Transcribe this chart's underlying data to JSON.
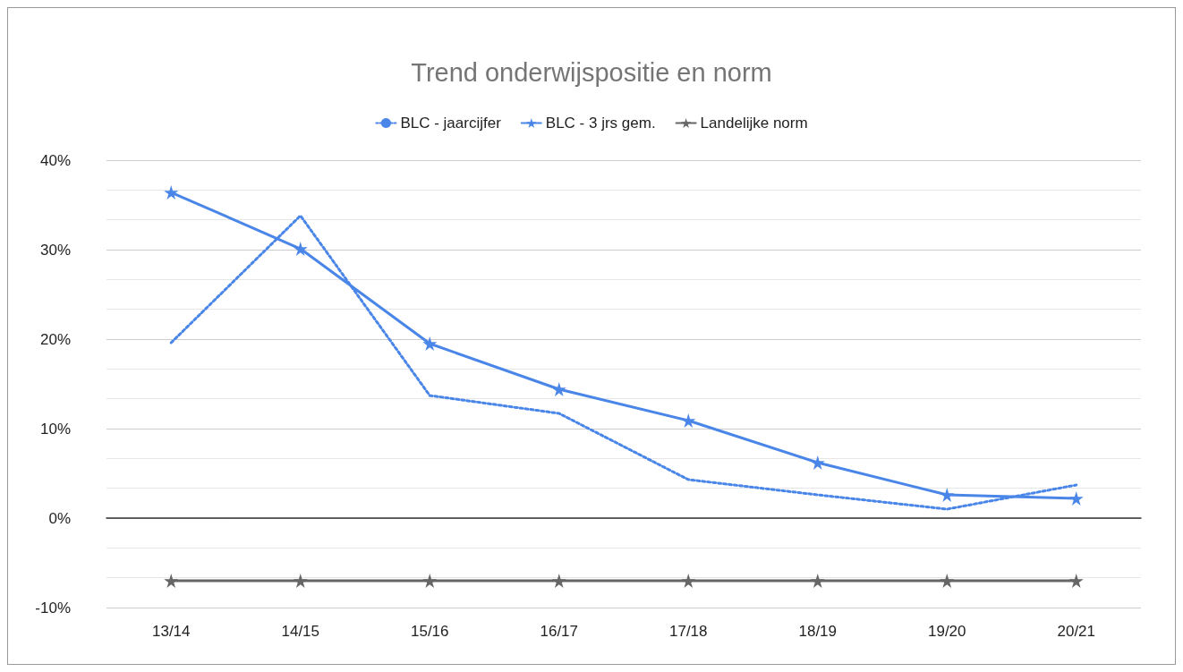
{
  "chart_data": {
    "type": "line",
    "title": "Trend onderwijspositie en norm",
    "categories": [
      "13/14",
      "14/15",
      "15/16",
      "16/17",
      "17/18",
      "18/19",
      "19/20",
      "20/21"
    ],
    "series": [
      {
        "name": "BLC - jaarcijfer",
        "color": "#4a86e8",
        "line_style": "dotted",
        "marker": "none",
        "values": [
          19.6,
          33.8,
          13.7,
          11.7,
          4.3,
          2.6,
          1.0,
          3.7
        ]
      },
      {
        "name": "BLC - 3 jrs gem.",
        "color": "#4a86e8",
        "line_style": "solid",
        "marker": "star",
        "values": [
          36.4,
          30.1,
          19.5,
          14.4,
          10.9,
          6.2,
          2.6,
          2.2
        ]
      },
      {
        "name": "Landelijke norm",
        "color": "#666666",
        "line_style": "solid",
        "marker": "star",
        "values": [
          -7,
          -7,
          -7,
          -7,
          -7,
          -7,
          -7,
          -7
        ]
      }
    ],
    "ylim": [
      -10,
      40
    ],
    "yticks": [
      {
        "value": -10,
        "label": "-10%"
      },
      {
        "value": 0,
        "label": "0%"
      },
      {
        "value": 10,
        "label": "10%"
      },
      {
        "value": 20,
        "label": "20%"
      },
      {
        "value": 30,
        "label": "30%"
      },
      {
        "value": 40,
        "label": "40%"
      }
    ],
    "grid": "y",
    "legend": "top"
  }
}
